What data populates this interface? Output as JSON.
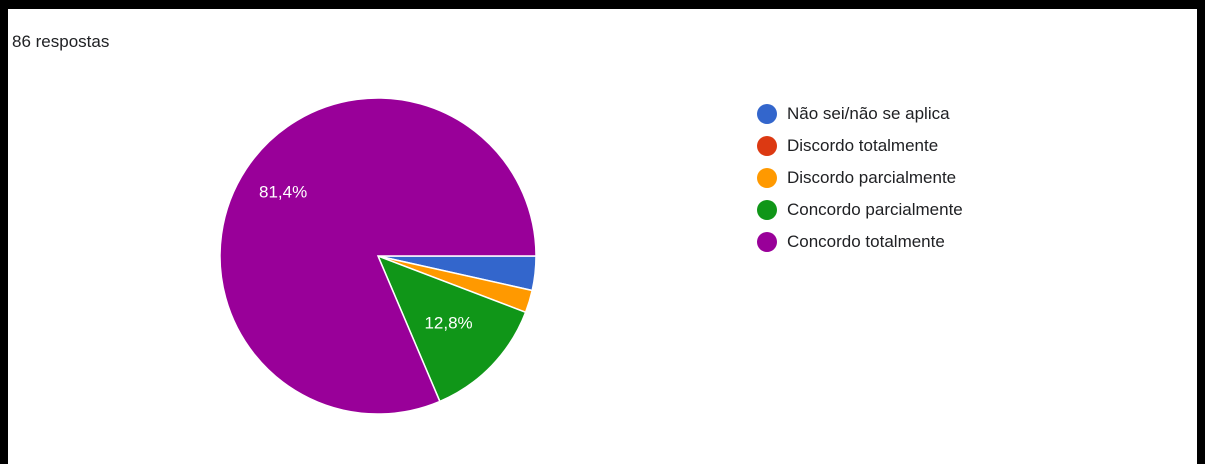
{
  "summary": {
    "responses_label": "86 respostas"
  },
  "chart_data": {
    "type": "pie",
    "title": "",
    "start_angle_deg": 90,
    "direction": "clockwise",
    "slices": [
      {
        "label": "Não sei/não se aplica",
        "value": 3.5,
        "color": "#3366cc",
        "display_label": ""
      },
      {
        "label": "Discordo totalmente",
        "value": 0.0,
        "color": "#dc3912",
        "display_label": ""
      },
      {
        "label": "Discordo parcialmente",
        "value": 2.3,
        "color": "#ff9900",
        "display_label": ""
      },
      {
        "label": "Concordo parcialmente",
        "value": 12.8,
        "color": "#109618",
        "display_label": "12,8%"
      },
      {
        "label": "Concordo totalmente",
        "value": 81.4,
        "color": "#990099",
        "display_label": "81,4%"
      }
    ],
    "legend_position": "right"
  }
}
